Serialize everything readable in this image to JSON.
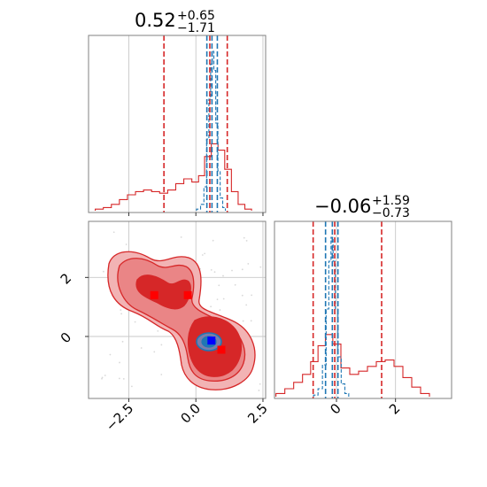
{
  "chart_data": {
    "type": "scatter",
    "kind": "corner-plot",
    "parameters": [
      {
        "title": {
          "median": "0.52",
          "plus": "+0.65",
          "minus": "−1.71"
        },
        "xticks": [
          "−2.5",
          "0.0",
          "2.5"
        ],
        "range": [
          -4.0,
          2.6
        ]
      },
      {
        "title": {
          "median": "−0.06",
          "plus": "+1.59",
          "minus": "−0.73"
        },
        "xticks": [
          "0",
          "2"
        ],
        "yticks": [
          "2",
          "0"
        ],
        "range": [
          -2.1,
          3.9
        ]
      }
    ],
    "colors": {
      "red": "#d62728",
      "blue": "#1f77b4",
      "marker_blue": "#0000ff",
      "marker_red": "#ff0000"
    },
    "grid": true,
    "series": [
      {
        "name": "",
        "color": "#d62728",
        "hist_p1": [
          [
            -3.6,
            0.01
          ],
          [
            -3.3,
            0.02
          ],
          [
            -3.0,
            0.04
          ],
          [
            -2.7,
            0.07
          ],
          [
            -2.4,
            0.1
          ],
          [
            -2.1,
            0.12
          ],
          [
            -1.8,
            0.13
          ],
          [
            -1.5,
            0.12
          ],
          [
            -1.2,
            0.11
          ],
          [
            -0.9,
            0.13
          ],
          [
            -0.6,
            0.17
          ],
          [
            -0.3,
            0.2
          ],
          [
            0.0,
            0.18
          ],
          [
            0.2,
            0.22
          ],
          [
            0.45,
            0.34
          ],
          [
            0.7,
            0.42
          ],
          [
            0.95,
            0.38
          ],
          [
            1.2,
            0.26
          ],
          [
            1.45,
            0.12
          ],
          [
            1.7,
            0.04
          ],
          [
            1.95,
            0.01
          ]
        ],
        "quantiles_p1": [
          -1.19,
          0.52,
          1.17
        ],
        "hist_p2": [
          [
            -1.9,
            0.02
          ],
          [
            -1.6,
            0.05
          ],
          [
            -1.3,
            0.09
          ],
          [
            -1.0,
            0.14
          ],
          [
            -0.75,
            0.22
          ],
          [
            -0.5,
            0.32
          ],
          [
            -0.25,
            0.39
          ],
          [
            0.0,
            0.33
          ],
          [
            0.3,
            0.18
          ],
          [
            0.6,
            0.14
          ],
          [
            0.9,
            0.16
          ],
          [
            1.2,
            0.19
          ],
          [
            1.5,
            0.22
          ],
          [
            1.8,
            0.23
          ],
          [
            2.1,
            0.19
          ],
          [
            2.4,
            0.12
          ],
          [
            2.7,
            0.06
          ],
          [
            3.0,
            0.02
          ]
        ],
        "quantiles_p2": [
          -0.79,
          -0.06,
          1.53
        ],
        "markers": [
          [
            -1.55,
            1.4
          ],
          [
            -0.3,
            1.4
          ],
          [
            0.95,
            -0.45
          ]
        ]
      },
      {
        "name": "",
        "color": "#1f77b4",
        "hist_p1": [
          [
            0.1,
            0.01
          ],
          [
            0.25,
            0.04
          ],
          [
            0.35,
            0.15
          ],
          [
            0.45,
            0.45
          ],
          [
            0.52,
            0.7
          ],
          [
            0.58,
            0.92
          ],
          [
            0.64,
            1.0
          ],
          [
            0.7,
            0.88
          ],
          [
            0.78,
            0.55
          ],
          [
            0.86,
            0.25
          ],
          [
            0.95,
            0.08
          ],
          [
            1.05,
            0.02
          ]
        ],
        "quantiles_p1": [
          0.41,
          0.6,
          0.8
        ],
        "hist_p2": [
          [
            -0.7,
            0.01
          ],
          [
            -0.55,
            0.05
          ],
          [
            -0.4,
            0.2
          ],
          [
            -0.3,
            0.55
          ],
          [
            -0.22,
            0.85
          ],
          [
            -0.15,
            1.0
          ],
          [
            -0.08,
            0.85
          ],
          [
            0.0,
            0.55
          ],
          [
            0.1,
            0.25
          ],
          [
            0.22,
            0.08
          ],
          [
            0.35,
            0.02
          ]
        ],
        "quantiles_p2": [
          -0.37,
          -0.14,
          0.05
        ],
        "markers": [
          [
            0.58,
            -0.14
          ]
        ]
      }
    ]
  }
}
